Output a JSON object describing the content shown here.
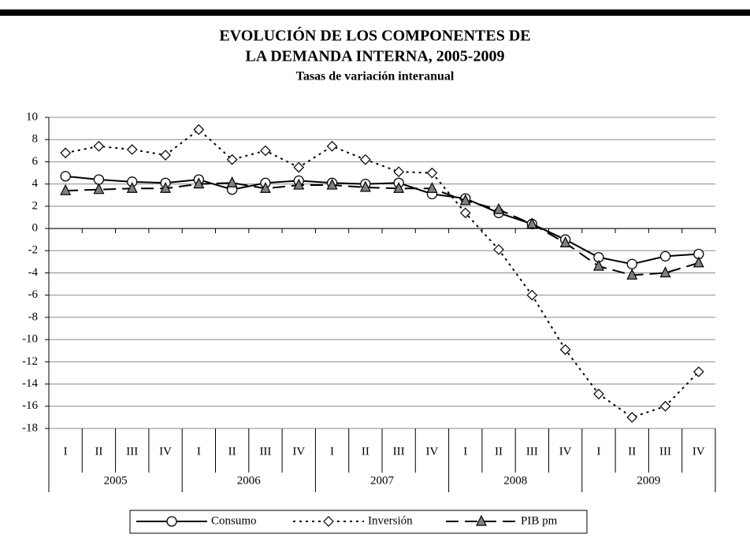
{
  "chart_data": {
    "type": "line",
    "title": "EVOLUCIÓN DE LOS COMPONENTES DE",
    "title_line2": "LA DEMANDA INTERNA, 2005-2009",
    "subtitle": "Tasas de variación interanual",
    "categories": [
      "I",
      "II",
      "III",
      "IV",
      "I",
      "II",
      "III",
      "IV",
      "I",
      "II",
      "III",
      "IV",
      "I",
      "II",
      "III",
      "IV",
      "I",
      "II",
      "III",
      "IV"
    ],
    "years": [
      "2005",
      "2006",
      "2007",
      "2008",
      "2009"
    ],
    "ylim": [
      -18,
      10
    ],
    "yticks": [
      10,
      8,
      6,
      4,
      2,
      0,
      -2,
      -4,
      -6,
      -8,
      -10,
      -12,
      -14,
      -16,
      -18
    ],
    "grid": true,
    "series": [
      {
        "name": "Consumo",
        "color": "#000000",
        "line_style": "solid",
        "marker": "circle",
        "marker_color": "#ffffff",
        "values": [
          4.7,
          4.4,
          4.2,
          4.1,
          4.4,
          3.5,
          4.1,
          4.3,
          4.1,
          4.0,
          4.1,
          3.1,
          2.7,
          1.4,
          0.4,
          -1.0,
          -2.6,
          -3.2,
          -2.5,
          -2.3
        ]
      },
      {
        "name": "Inversión",
        "color": "#000000",
        "line_style": "dotted",
        "marker": "diamond",
        "marker_color": "#ffffff",
        "values": [
          6.8,
          7.4,
          7.1,
          6.6,
          8.9,
          6.2,
          7.0,
          5.5,
          7.4,
          6.2,
          5.1,
          5.0,
          1.4,
          -1.9,
          -6.0,
          -10.9,
          -14.9,
          -17.0,
          -16.0,
          -12.9
        ]
      },
      {
        "name": "PIB pm",
        "color": "#000000",
        "line_style": "dashed",
        "marker": "triangle",
        "marker_color": "#808080",
        "values": [
          3.4,
          3.5,
          3.6,
          3.6,
          4.0,
          4.1,
          3.6,
          3.9,
          3.9,
          3.7,
          3.6,
          3.6,
          2.5,
          1.7,
          0.4,
          -1.3,
          -3.4,
          -4.2,
          -4.0,
          -3.1
        ]
      }
    ],
    "legend": "bottom"
  }
}
